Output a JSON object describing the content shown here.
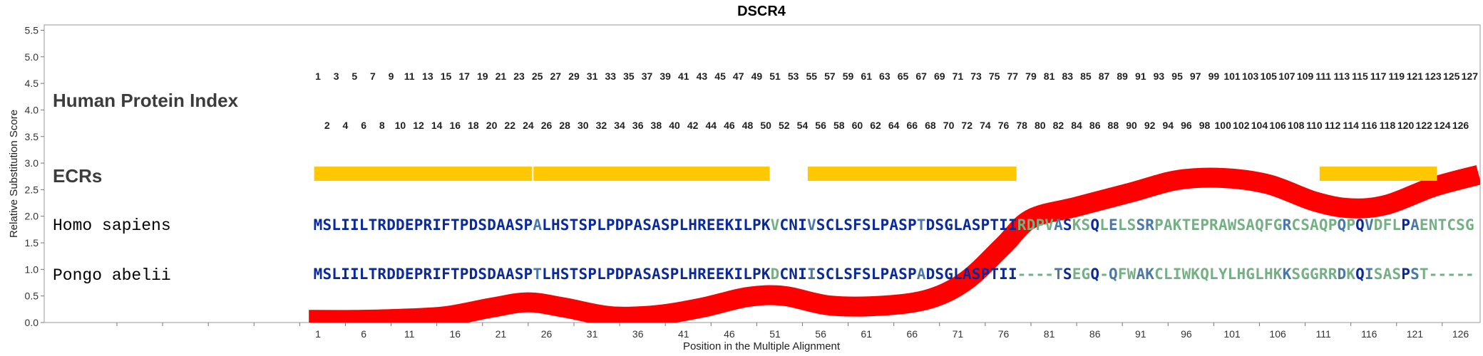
{
  "chart_data": {
    "type": "line",
    "title": "DSCR4",
    "xlabel": "Position in the Multiple Alignment",
    "ylabel": "Relative Substitution Score",
    "xlim": [
      0.5,
      127.5
    ],
    "ylim": [
      0,
      5.6
    ],
    "y_ticks": [
      "0.0",
      "0.5",
      "1.0",
      "1.5",
      "2.0",
      "2.5",
      "3.0",
      "3.5",
      "4.0",
      "4.5",
      "5.0",
      "5.5"
    ],
    "x_ticks": [
      1,
      6,
      11,
      16,
      21,
      26,
      31,
      36,
      41,
      46,
      51,
      56,
      61,
      66,
      71,
      76,
      81,
      86,
      91,
      96,
      101,
      106,
      111,
      116,
      121,
      126
    ],
    "row_labels": {
      "index": "Human Protein Index",
      "ecrs": "ECRs",
      "species1": "Homo sapiens",
      "species2": "Pongo abelii"
    },
    "index_odd": [
      1,
      3,
      5,
      7,
      9,
      11,
      13,
      15,
      17,
      19,
      21,
      23,
      25,
      27,
      29,
      31,
      33,
      35,
      37,
      39,
      41,
      43,
      45,
      47,
      49,
      51,
      53,
      55,
      57,
      59,
      61,
      63,
      65,
      67,
      69,
      71,
      73,
      75,
      77,
      79,
      81,
      83,
      85,
      87,
      89,
      91,
      93,
      95,
      97,
      99,
      101,
      103,
      105,
      107,
      109,
      111,
      113,
      115,
      117,
      119,
      121,
      123,
      125,
      127
    ],
    "index_even": [
      2,
      4,
      6,
      8,
      10,
      12,
      14,
      16,
      18,
      20,
      22,
      24,
      26,
      28,
      30,
      32,
      34,
      36,
      38,
      40,
      42,
      44,
      46,
      48,
      50,
      52,
      54,
      56,
      58,
      60,
      62,
      64,
      66,
      68,
      70,
      72,
      74,
      76,
      78,
      80,
      82,
      84,
      86,
      88,
      90,
      92,
      94,
      96,
      98,
      100,
      102,
      104,
      106,
      108,
      110,
      112,
      114,
      116,
      118,
      120,
      122,
      124,
      126
    ],
    "ecr_segments": [
      [
        1,
        24
      ],
      [
        25,
        50
      ],
      [
        55,
        77
      ],
      [
        111,
        123
      ]
    ],
    "ecr_color": "#ffc800",
    "score_line": {
      "color": "#ff0000",
      "x": [
        0,
        5,
        10,
        15,
        20,
        24,
        28,
        33,
        38,
        43,
        48,
        52,
        57,
        63,
        68,
        72,
        76,
        79,
        84,
        90,
        95,
        100,
        105,
        110,
        114,
        118,
        123,
        128
      ],
      "y": [
        0.05,
        0.05,
        0.07,
        0.12,
        0.28,
        0.38,
        0.28,
        0.12,
        0.14,
        0.28,
        0.48,
        0.5,
        0.32,
        0.32,
        0.45,
        0.8,
        1.45,
        1.95,
        2.18,
        2.45,
        2.68,
        2.72,
        2.6,
        2.28,
        2.15,
        2.22,
        2.55,
        2.78
      ]
    },
    "seq_homo": "MSLIILTRDDEPRIFTPDSDAASPALHSTSPLPDPASASPLHREEKILPKVCNIVSCLSFSLPASPTDSGLASPTIIRDPVASKSQLELSSRPAKTEPRAWSAQFGRCSAQPQPQVDFLPAENTCSG",
    "seq_pongo": "MSLIILTRDDEPRIFTPDSDAASPTLHSTSPLPDPASASPLHREEKILPKDCNIISCLSFSLPASPADSGLASPTII----TSEGQ-QFWAKCLIWKQLYLHGLHKKSGGRRDKQISASPST-----",
    "colors": {
      "identical": "#0a2a9c",
      "similar": "#4a78a8",
      "variable": "#74b084",
      "gap": "#74b084"
    },
    "grid": false,
    "legend": "none"
  }
}
